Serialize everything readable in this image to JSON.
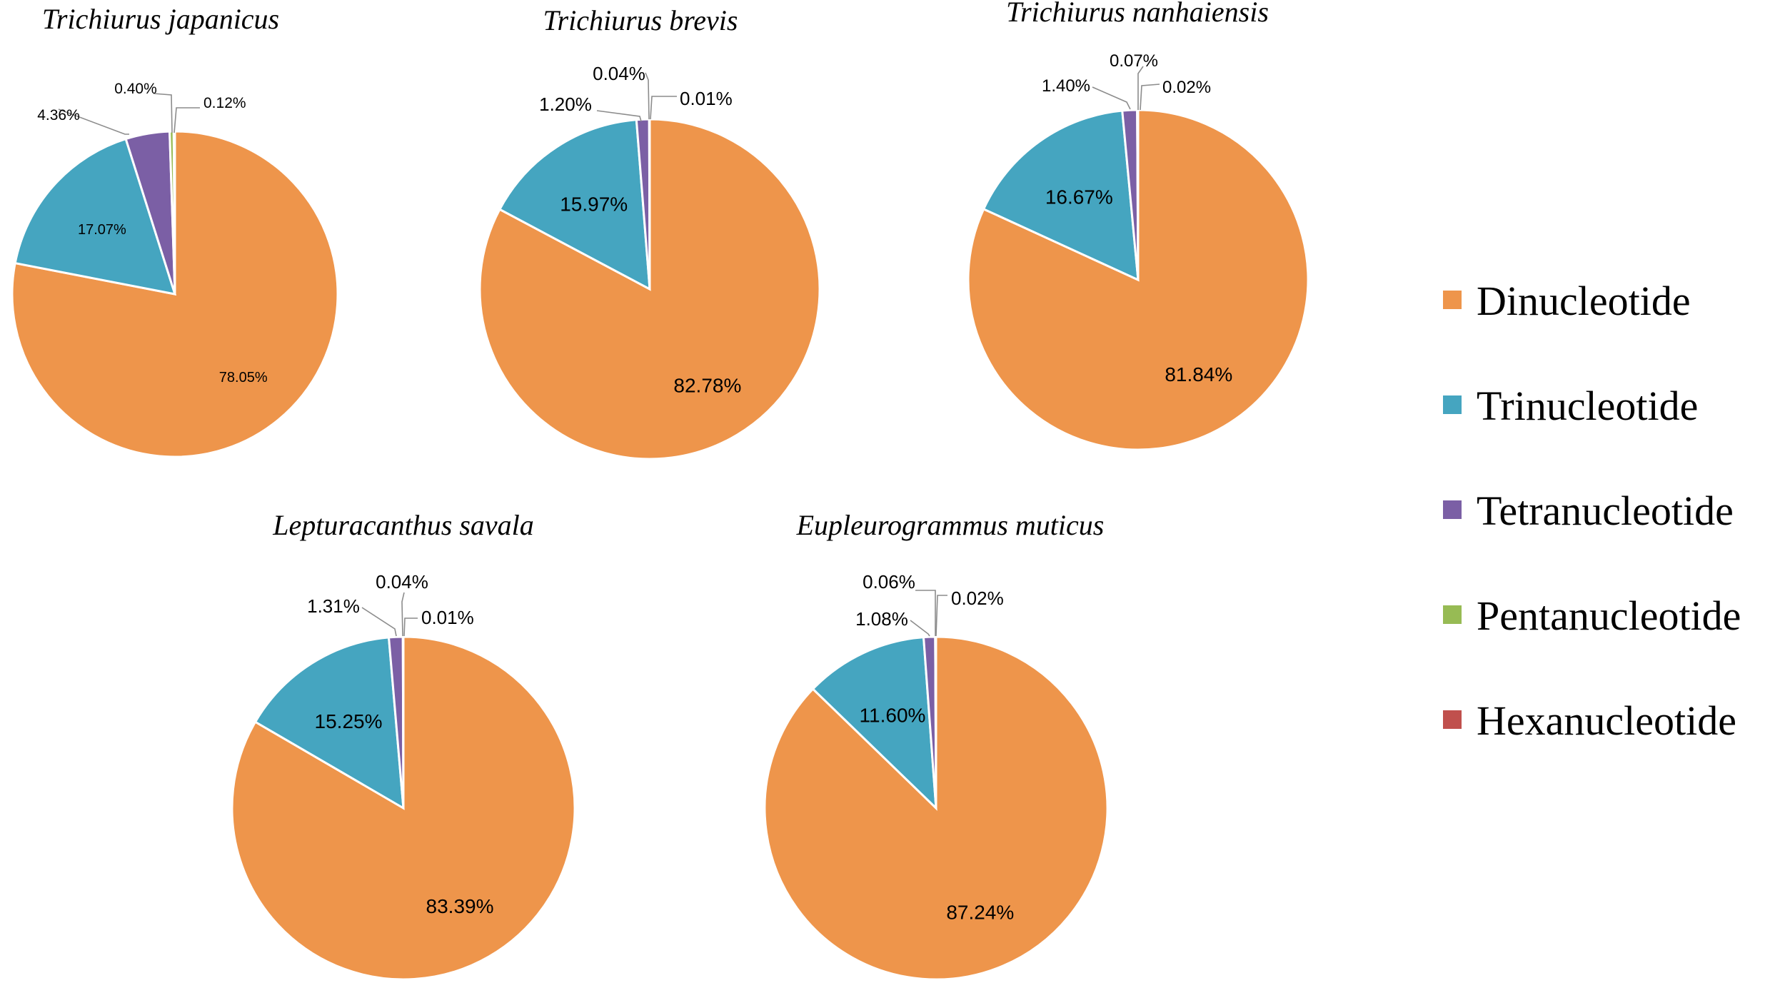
{
  "chart_data": [
    {
      "type": "pie",
      "title": "Trichiurus japanicus",
      "categories": [
        "Dinucleotide",
        "Trinucleotide",
        "Tetranucleotide",
        "Pentanucleotide",
        "Hexanucleotide"
      ],
      "values": [
        78.05,
        17.07,
        4.36,
        0.4,
        0.12
      ],
      "labels": [
        "78.05%",
        "17.07%",
        "4.36%",
        "0.40%",
        "0.12%"
      ]
    },
    {
      "type": "pie",
      "title": "Trichiurus brevis",
      "categories": [
        "Dinucleotide",
        "Trinucleotide",
        "Tetranucleotide",
        "Pentanucleotide",
        "Hexanucleotide"
      ],
      "values": [
        82.78,
        15.97,
        1.2,
        0.04,
        0.01
      ],
      "labels": [
        "82.78%",
        "15.97%",
        "1.20%",
        "0.04%",
        "0.01%"
      ]
    },
    {
      "type": "pie",
      "title": "Trichiurus nanhaiensis",
      "categories": [
        "Dinucleotide",
        "Trinucleotide",
        "Tetranucleotide",
        "Pentanucleotide",
        "Hexanucleotide"
      ],
      "values": [
        81.84,
        16.67,
        1.4,
        0.07,
        0.02
      ],
      "labels": [
        "81.84%",
        "16.67%",
        "1.40%",
        "0.07%",
        "0.02%"
      ]
    },
    {
      "type": "pie",
      "title": "Lepturacanthus savala",
      "categories": [
        "Dinucleotide",
        "Trinucleotide",
        "Tetranucleotide",
        "Pentanucleotide",
        "Hexanucleotide"
      ],
      "values": [
        83.39,
        15.25,
        1.31,
        0.04,
        0.01
      ],
      "labels": [
        "83.39%",
        "15.25%",
        "1.31%",
        "0.04%",
        "0.01%"
      ]
    },
    {
      "type": "pie",
      "title": "Eupleurogrammus muticus",
      "categories": [
        "Dinucleotide",
        "Trinucleotide",
        "Tetranucleotide",
        "Pentanucleotide",
        "Hexanucleotide"
      ],
      "values": [
        87.24,
        11.6,
        1.08,
        0.06,
        0.02
      ],
      "labels": [
        "87.24%",
        "11.60%",
        "1.08%",
        "0.06%",
        "0.02%"
      ]
    }
  ],
  "legend": {
    "items": [
      {
        "label": "Dinucleotide",
        "color": "#ee954b"
      },
      {
        "label": "Trinucleotide",
        "color": "#45a5c0"
      },
      {
        "label": "Tetranucleotide",
        "color": "#7b5fa5"
      },
      {
        "label": "Pentanucleotide",
        "color": "#97bb54"
      },
      {
        "label": "Hexanucleotide",
        "color": "#c0504d"
      }
    ]
  }
}
